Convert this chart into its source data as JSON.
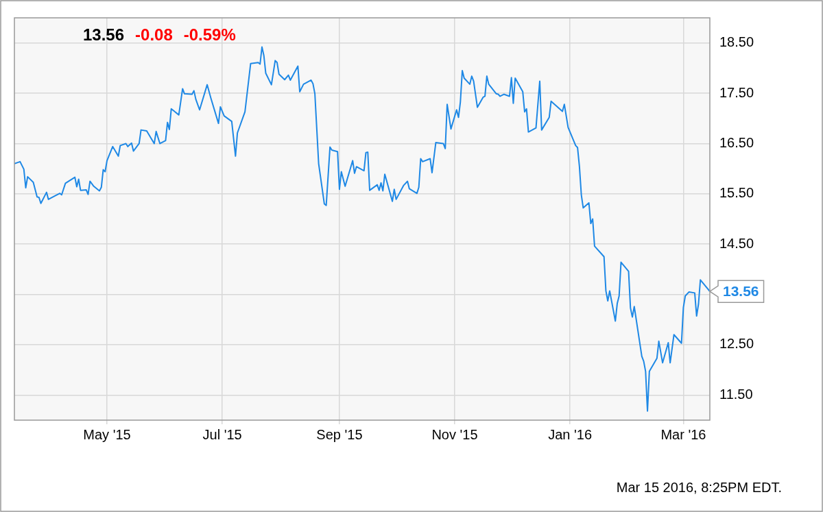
{
  "chart_data": {
    "type": "line",
    "x": [
      "2015-03-13",
      "2015-03-16",
      "2015-03-18",
      "2015-03-19",
      "2015-03-20",
      "2015-03-23",
      "2015-03-25",
      "2015-03-26",
      "2015-03-27",
      "2015-03-30",
      "2015-03-31",
      "2015-04-02",
      "2015-04-06",
      "2015-04-07",
      "2015-04-09",
      "2015-04-14",
      "2015-04-15",
      "2015-04-16",
      "2015-04-17",
      "2015-04-20",
      "2015-04-21",
      "2015-04-22",
      "2015-04-24",
      "2015-04-27",
      "2015-04-28",
      "2015-04-29",
      "2015-04-30",
      "2015-05-01",
      "2015-05-04",
      "2015-05-07",
      "2015-05-08",
      "2015-05-11",
      "2015-05-12",
      "2015-05-14",
      "2015-05-15",
      "2015-05-18",
      "2015-05-19",
      "2015-05-22",
      "2015-05-26",
      "2015-05-27",
      "2015-05-29",
      "2015-06-01",
      "2015-06-02",
      "2015-06-03",
      "2015-06-04",
      "2015-06-08",
      "2015-06-10",
      "2015-06-11",
      "2015-06-15",
      "2015-06-16",
      "2015-06-17",
      "2015-06-19",
      "2015-06-23",
      "2015-06-25",
      "2015-06-29",
      "2015-06-30",
      "2015-07-02",
      "2015-07-06",
      "2015-07-08",
      "2015-07-09",
      "2015-07-13",
      "2015-07-16",
      "2015-07-20",
      "2015-07-21",
      "2015-07-22",
      "2015-07-23",
      "2015-07-24",
      "2015-07-27",
      "2015-07-29",
      "2015-07-30",
      "2015-07-31",
      "2015-08-03",
      "2015-08-05",
      "2015-08-06",
      "2015-08-10",
      "2015-08-11",
      "2015-08-13",
      "2015-08-17",
      "2015-08-18",
      "2015-08-19",
      "2015-08-21",
      "2015-08-24",
      "2015-08-25",
      "2015-08-27",
      "2015-08-28",
      "2015-08-31",
      "2015-09-01",
      "2015-09-02",
      "2015-09-04",
      "2015-09-08",
      "2015-09-09",
      "2015-09-10",
      "2015-09-14",
      "2015-09-15",
      "2015-09-16",
      "2015-09-17",
      "2015-09-21",
      "2015-09-22",
      "2015-09-23",
      "2015-09-24",
      "2015-09-25",
      "2015-09-29",
      "2015-09-30",
      "2015-10-01",
      "2015-10-05",
      "2015-10-07",
      "2015-10-08",
      "2015-10-12",
      "2015-10-13",
      "2015-10-14",
      "2015-10-15",
      "2015-10-19",
      "2015-10-20",
      "2015-10-22",
      "2015-10-26",
      "2015-10-27",
      "2015-10-28",
      "2015-10-30",
      "2015-11-02",
      "2015-11-03",
      "2015-11-04",
      "2015-11-05",
      "2015-11-06",
      "2015-11-09",
      "2015-11-10",
      "2015-11-11",
      "2015-11-13",
      "2015-11-16",
      "2015-11-17",
      "2015-11-18",
      "2015-11-19",
      "2015-11-23",
      "2015-11-24",
      "2015-11-25",
      "2015-11-27",
      "2015-11-30",
      "2015-12-01",
      "2015-12-02",
      "2015-12-03",
      "2015-12-07",
      "2015-12-08",
      "2015-12-09",
      "2015-12-10",
      "2015-12-14",
      "2015-12-16",
      "2015-12-17",
      "2015-12-21",
      "2015-12-22",
      "2015-12-28",
      "2015-12-29",
      "2015-12-31",
      "2016-01-04",
      "2016-01-05",
      "2016-01-06",
      "2016-01-07",
      "2016-01-08",
      "2016-01-11",
      "2016-01-12",
      "2016-01-13",
      "2016-01-14",
      "2016-01-19",
      "2016-01-20",
      "2016-01-21",
      "2016-01-22",
      "2016-01-25",
      "2016-01-26",
      "2016-01-27",
      "2016-01-28",
      "2016-02-01",
      "2016-02-02",
      "2016-02-03",
      "2016-02-04",
      "2016-02-08",
      "2016-02-09",
      "2016-02-10",
      "2016-02-11",
      "2016-02-12",
      "2016-02-16",
      "2016-02-17",
      "2016-02-19",
      "2016-02-22",
      "2016-02-23",
      "2016-02-25",
      "2016-02-29",
      "2016-03-01",
      "2016-03-02",
      "2016-03-04",
      "2016-03-07",
      "2016-03-08",
      "2016-03-09",
      "2016-03-10",
      "2016-03-15"
    ],
    "series": [
      {
        "color": "#1e88e5",
        "values": [
          16.1,
          16.14,
          15.99,
          15.62,
          15.84,
          15.73,
          15.44,
          15.43,
          15.31,
          15.53,
          15.39,
          15.43,
          15.51,
          15.48,
          15.71,
          15.83,
          15.64,
          15.79,
          15.57,
          15.58,
          15.49,
          15.75,
          15.65,
          15.56,
          15.63,
          15.98,
          15.94,
          16.16,
          16.44,
          16.25,
          16.46,
          16.5,
          16.44,
          16.51,
          16.35,
          16.5,
          16.77,
          16.75,
          16.5,
          16.74,
          16.5,
          16.56,
          16.92,
          16.78,
          17.19,
          17.07,
          17.59,
          17.49,
          17.48,
          17.55,
          17.38,
          17.17,
          17.67,
          17.4,
          16.9,
          17.23,
          17.05,
          16.94,
          16.25,
          16.71,
          17.13,
          18.09,
          18.11,
          18.08,
          18.42,
          18.25,
          17.9,
          17.67,
          18.15,
          18.11,
          17.88,
          17.77,
          17.86,
          17.76,
          18.04,
          17.53,
          17.68,
          17.76,
          17.69,
          17.49,
          16.1,
          15.3,
          15.27,
          16.43,
          16.37,
          16.34,
          15.59,
          15.94,
          15.65,
          16.16,
          15.91,
          16.04,
          15.96,
          16.32,
          16.33,
          15.57,
          15.68,
          15.57,
          15.72,
          15.56,
          15.89,
          15.35,
          15.59,
          15.39,
          15.67,
          15.75,
          15.6,
          15.51,
          15.63,
          16.2,
          16.14,
          16.2,
          15.92,
          16.52,
          16.5,
          16.4,
          17.28,
          16.79,
          17.17,
          17.02,
          17.33,
          17.95,
          17.8,
          17.68,
          17.84,
          17.74,
          17.22,
          17.42,
          17.44,
          17.84,
          17.68,
          17.49,
          17.48,
          17.44,
          17.48,
          17.44,
          17.81,
          17.3,
          17.8,
          17.53,
          17.13,
          17.19,
          16.73,
          16.81,
          17.74,
          16.77,
          17.02,
          17.34,
          17.14,
          17.28,
          16.82,
          16.46,
          16.42,
          16.04,
          15.48,
          15.22,
          15.32,
          14.91,
          15.0,
          14.46,
          14.25,
          13.57,
          13.37,
          13.57,
          12.97,
          13.32,
          13.47,
          14.14,
          13.96,
          13.23,
          13.05,
          13.26,
          12.27,
          12.17,
          11.97,
          11.18,
          11.97,
          12.23,
          12.57,
          12.14,
          12.54,
          12.14,
          12.7,
          12.53,
          13.24,
          13.47,
          13.55,
          13.53,
          13.07,
          13.31,
          13.79,
          13.56
        ]
      }
    ],
    "xlim": [
      "2015-03-13",
      "2016-03-15"
    ],
    "xticks": [
      {
        "value": "2015-05-01",
        "label": "May '15"
      },
      {
        "value": "2015-07-01",
        "label": "Jul '15"
      },
      {
        "value": "2015-09-01",
        "label": "Sep '15"
      },
      {
        "value": "2015-11-01",
        "label": "Nov '15"
      },
      {
        "value": "2016-01-01",
        "label": "Jan '16"
      },
      {
        "value": "2016-03-01",
        "label": "Mar '16"
      }
    ],
    "ylim": [
      11.0,
      19.0
    ],
    "yticks": [
      {
        "value": 11.5,
        "label": "11.50"
      },
      {
        "value": 12.5,
        "label": "12.50"
      },
      {
        "value": 13.5,
        "label": null
      },
      {
        "value": 14.5,
        "label": "14.50"
      },
      {
        "value": 15.5,
        "label": "15.50"
      },
      {
        "value": 16.5,
        "label": "16.50"
      },
      {
        "value": 17.5,
        "label": "17.50"
      },
      {
        "value": 18.5,
        "label": "18.50"
      }
    ],
    "grid": true,
    "legend": false,
    "marker": "none",
    "line_style": "solid",
    "annotations": [
      "13.56",
      "-0.08",
      "-0.59%",
      "Mar 15 2016, 8:25PM EDT.",
      {
        "text": "13.56",
        "x": "2016-03-15",
        "y": 13.56
      }
    ]
  }
}
